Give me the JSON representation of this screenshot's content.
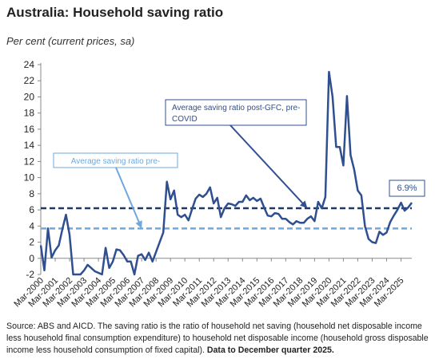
{
  "header": {
    "title": "Australia: Household saving ratio",
    "subtitle": "Per cent (current prices, sa)"
  },
  "chart_data": {
    "type": "line",
    "title": "Australia: Household saving ratio",
    "ylabel": "Per cent (current prices, sa)",
    "ylim": [
      -2,
      24
    ],
    "yticks": [
      "-2",
      "0",
      "2",
      "4",
      "6",
      "8",
      "10",
      "12",
      "14",
      "16",
      "18",
      "20",
      "22",
      "24"
    ],
    "xrange": [
      "Mar-2000",
      "Dec-2025"
    ],
    "xticks": [
      "Mar-2000",
      "Mar-2001",
      "Mar-2002",
      "Mar-2003",
      "Mar-2004",
      "Mar-2005",
      "Mar-2006",
      "Mar-2007",
      "Mar-2008",
      "Mar-2009",
      "Mar-2010",
      "Mar-2011",
      "Mar-2012",
      "Mar-2013",
      "Mar-2014",
      "Mar-2015",
      "Mar-2016",
      "Mar-2017",
      "Mar-2018",
      "Mar-2019",
      "Mar-2020",
      "Mar-2021",
      "Mar-2022",
      "Mar-2023",
      "Mar-2024",
      "Mar-2025"
    ],
    "series": [
      {
        "color": "#2f4f8f",
        "points": [
          [
            "Mar-2000",
            1.6
          ],
          [
            "Jun-2000",
            -1.5
          ],
          [
            "Sep-2000",
            3.7
          ],
          [
            "Dec-2000",
            0.1
          ],
          [
            "Mar-2001",
            1.0
          ],
          [
            "Jun-2001",
            1.6
          ],
          [
            "Sep-2001",
            3.6
          ],
          [
            "Dec-2001",
            5.4
          ],
          [
            "Mar-2002",
            2.9
          ],
          [
            "Jun-2002",
            -2.0
          ],
          [
            "Sep-2002",
            -2.0
          ],
          [
            "Dec-2002",
            -2.0
          ],
          [
            "Mar-2003",
            -1.5
          ],
          [
            "Jun-2003",
            -0.8
          ],
          [
            "Sep-2003",
            -1.2
          ],
          [
            "Dec-2003",
            -1.6
          ],
          [
            "Mar-2004",
            -1.8
          ],
          [
            "Jun-2004",
            -2.0
          ],
          [
            "Sep-2004",
            1.3
          ],
          [
            "Dec-2004",
            -1.2
          ],
          [
            "Mar-2005",
            -0.4
          ],
          [
            "Jun-2005",
            1.1
          ],
          [
            "Sep-2005",
            1.0
          ],
          [
            "Dec-2005",
            0.4
          ],
          [
            "Mar-2006",
            -0.4
          ],
          [
            "Jun-2006",
            -0.4
          ],
          [
            "Sep-2006",
            -2.0
          ],
          [
            "Dec-2006",
            0.3
          ],
          [
            "Mar-2007",
            0.5
          ],
          [
            "Jun-2007",
            -0.2
          ],
          [
            "Sep-2007",
            0.7
          ],
          [
            "Dec-2007",
            -0.4
          ],
          [
            "Mar-2008",
            0.8
          ],
          [
            "Jun-2008",
            2.0
          ],
          [
            "Sep-2008",
            3.2
          ],
          [
            "Dec-2008",
            9.5
          ],
          [
            "Mar-2009",
            7.3
          ],
          [
            "Jun-2009",
            8.4
          ],
          [
            "Sep-2009",
            5.4
          ],
          [
            "Dec-2009",
            5.1
          ],
          [
            "Mar-2010",
            5.4
          ],
          [
            "Jun-2010",
            4.7
          ],
          [
            "Sep-2010",
            6.1
          ],
          [
            "Dec-2010",
            7.4
          ],
          [
            "Mar-2011",
            7.9
          ],
          [
            "Jun-2011",
            7.6
          ],
          [
            "Sep-2011",
            8.0
          ],
          [
            "Dec-2011",
            8.8
          ],
          [
            "Mar-2012",
            6.8
          ],
          [
            "Jun-2012",
            7.5
          ],
          [
            "Sep-2012",
            5.1
          ],
          [
            "Dec-2012",
            6.2
          ],
          [
            "Mar-2013",
            6.8
          ],
          [
            "Jun-2013",
            6.7
          ],
          [
            "Sep-2013",
            6.5
          ],
          [
            "Dec-2013",
            7.0
          ],
          [
            "Mar-2014",
            7.0
          ],
          [
            "Jun-2014",
            7.8
          ],
          [
            "Sep-2014",
            7.2
          ],
          [
            "Dec-2014",
            7.5
          ],
          [
            "Mar-2015",
            7.1
          ],
          [
            "Jun-2015",
            7.4
          ],
          [
            "Sep-2015",
            6.3
          ],
          [
            "Dec-2015",
            5.3
          ],
          [
            "Mar-2016",
            5.2
          ],
          [
            "Jun-2016",
            5.6
          ],
          [
            "Sep-2016",
            5.5
          ],
          [
            "Dec-2016",
            4.9
          ],
          [
            "Mar-2017",
            4.9
          ],
          [
            "Jun-2017",
            4.5
          ],
          [
            "Sep-2017",
            4.2
          ],
          [
            "Dec-2017",
            4.6
          ],
          [
            "Mar-2018",
            4.4
          ],
          [
            "Jun-2018",
            4.4
          ],
          [
            "Sep-2018",
            4.9
          ],
          [
            "Dec-2018",
            5.2
          ],
          [
            "Mar-2019",
            4.6
          ],
          [
            "Jun-2019",
            7.0
          ],
          [
            "Sep-2019",
            6.2
          ],
          [
            "Dec-2019",
            7.6
          ],
          [
            "Mar-2020",
            23.1
          ],
          [
            "Jun-2020",
            20.0
          ],
          [
            "Sep-2020",
            13.8
          ],
          [
            "Dec-2020",
            13.8
          ],
          [
            "Mar-2021",
            11.5
          ],
          [
            "Jun-2021",
            20.1
          ],
          [
            "Sep-2021",
            12.8
          ],
          [
            "Dec-2021",
            11.0
          ],
          [
            "Mar-2022",
            8.4
          ],
          [
            "Jun-2022",
            7.8
          ],
          [
            "Sep-2022",
            4.0
          ],
          [
            "Dec-2022",
            2.4
          ],
          [
            "Mar-2023",
            2.0
          ],
          [
            "Jun-2023",
            1.9
          ],
          [
            "Sep-2023",
            3.3
          ],
          [
            "Dec-2023",
            2.9
          ],
          [
            "Mar-2024",
            3.2
          ],
          [
            "Jun-2024",
            4.5
          ],
          [
            "Sep-2024",
            5.3
          ],
          [
            "Dec-2024",
            6.0
          ],
          [
            "Mar-2025",
            6.9
          ],
          [
            "Jun-2025",
            5.9
          ],
          [
            "Sep-2025",
            6.3
          ],
          [
            "Dec-2025",
            6.9
          ]
        ]
      }
    ],
    "reference_lines": [
      {
        "name": "avg-post-gfc",
        "value": 6.2,
        "from": "Mar-2000",
        "to": "Dec-2025",
        "color": "#1f3864",
        "dash": true
      },
      {
        "name": "avg-pre",
        "value": 3.7,
        "from": "Mar-2000",
        "to": "Dec-2025",
        "color": "#6fa8dc",
        "dash": true
      }
    ],
    "annotations": [
      {
        "name": "post-gfc",
        "text_lines": [
          "Average saving ratio post-GFC, pre-",
          "COVID"
        ],
        "arrow_to": [
          "Sep-2018",
          6.2
        ],
        "color": "#2f4f8f"
      },
      {
        "name": "pre",
        "text_lines": [
          "Average saving ratio pre-"
        ],
        "arrow_to": [
          "Mar-2007",
          3.7
        ],
        "color": "#6fa8dc"
      },
      {
        "name": "latest",
        "text_lines": [
          "6.9%"
        ],
        "color": "#2f4f8f"
      }
    ],
    "grid": false,
    "legend": "none"
  },
  "footer": {
    "source": "Source: ABS and AICD.  The saving ratio is the ratio of household net saving (household net disposable income less household final consumption expenditure) to household net disposable income (household gross disposable income less household consumption of fixed capital).",
    "data_note": "Data to December quarter  2025."
  }
}
